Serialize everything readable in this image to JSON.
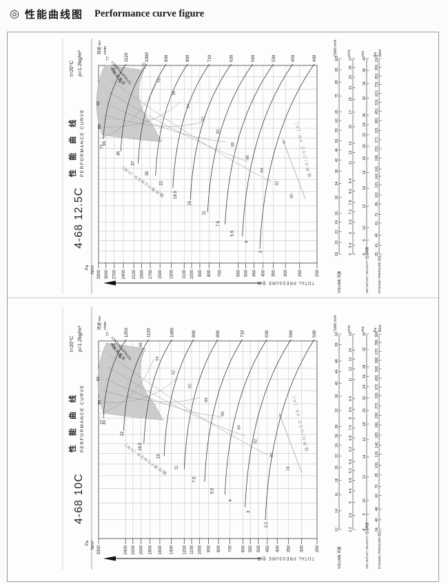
{
  "page": {
    "bullet": "◎",
    "title_zh": "性能曲线图",
    "title_en": "Performance curve figure"
  },
  "colors": {
    "shaded_efficiency_zone": "#c7c7c7",
    "curve_line": "#3a3a3a",
    "grid_line": "#b5b5b5",
    "noise_gray": "#8a8a8a"
  },
  "chart_data": [
    {
      "type": "line",
      "model": "4-68 12.5C",
      "title_zh": "性 能 曲 线",
      "title_en": "PERFORMANCE CURVE",
      "condition_temp": "t=20°C",
      "condition_density": "ρ=1.2kg/m³",
      "speed_axis": {
        "header": "转速 rev",
        "unit": "r/min",
        "rpm": [
          1120,
          1000,
          900,
          800,
          710,
          630,
          560,
          500,
          450,
          400
        ]
      },
      "pressure_axis": {
        "unit_line1": "Pa",
        "unit_line2": "N/m²",
        "label": "TOTAL PRESSURE 全压",
        "ticks": [
          3300,
          3000,
          2700,
          2400,
          2100,
          1900,
          1700,
          1500,
          1300,
          1100,
          1000,
          900,
          800,
          700,
          550,
          500,
          450,
          400,
          350,
          300,
          250,
          200
        ]
      },
      "efficiency": {
        "label_zh": "全压效率%",
        "label_en": "TOTALEFFICIENCY",
        "arc_labels": [
          77,
          81,
          83
        ],
        "edge_labels": [
          82,
          80,
          77
        ]
      },
      "shaft_power": {
        "label": "轴功率POWER (kW)",
        "values_kw": [
          55,
          45,
          37,
          30,
          22,
          18.5,
          15,
          11,
          7.5,
          5.5,
          4,
          3
        ]
      },
      "noise": {
        "label": "噪声NIOSE dB (A)",
        "values_dba": [
          100,
          98,
          96,
          94,
          92,
          90,
          88,
          86,
          84,
          82,
          80
        ]
      },
      "volume_axis": {
        "label": "VOLUME 风量",
        "unit1": "*1000 m³/h",
        "unit2": "m³/s",
        "ticks_1000m3h": [
          18,
          20,
          22,
          24,
          26,
          30,
          34,
          38,
          42,
          46,
          50,
          55,
          60,
          65,
          75,
          85,
          95,
          105
        ],
        "ticks_m3s": [
          5,
          5.4,
          6,
          6.6,
          7.2,
          7.8,
          8.6,
          9.4,
          11,
          12,
          13,
          15,
          17,
          19,
          21,
          23,
          25,
          27
        ]
      },
      "outlet_velocity_axis": {
        "label": "AIR OUTLET VELOCITY 出口风速",
        "unit": "m/s",
        "ticks": [
          8,
          9,
          10,
          12,
          14,
          16,
          18,
          20,
          22,
          24,
          26,
          30,
          34,
          38,
          42
        ]
      },
      "dynamic_pressure_axis": {
        "label": "DYNAMIC PRESSURE 动压",
        "unit_line1": "Pa",
        "unit_line2": "N/m²",
        "ticks": [
          35,
          41,
          49,
          61,
          71,
          86,
          101,
          121,
          141,
          161,
          196,
          231,
          271,
          321,
          381,
          451,
          531,
          621,
          731,
          851,
          991,
          1161
        ]
      }
    },
    {
      "type": "line",
      "model": "4-68 10C",
      "title_zh": "性 能 曲 线",
      "title_en": "PERFORMANCE CURVE",
      "condition_temp": "t=20°C",
      "condition_density": "ρ=1.2kg/m³",
      "speed_axis": {
        "header": "转速 rev",
        "unit": "r/min",
        "rpm": [
          1250,
          1120,
          1000,
          900,
          800,
          710,
          630,
          560,
          500
        ]
      },
      "pressure_axis": {
        "unit_line1": "Pa",
        "unit_line2": "N/m²",
        "label": "TOTAL PRESSURE 全压",
        "ticks": [
          3300,
          2400,
          2200,
          2000,
          1800,
          1600,
          1400,
          1200,
          1100,
          1000,
          900,
          800,
          700,
          600,
          550,
          500,
          450,
          400,
          350,
          300,
          250
        ]
      },
      "efficiency": {
        "label_zh": "全压效率%",
        "label_en": "TOTALEFFICIENCY",
        "arc_labels": [
          77,
          81,
          83
        ],
        "edge_labels": [
          82,
          80,
          77
        ]
      },
      "shaft_power": {
        "label": "轴功率POWER (kW)",
        "values_kw": [
          30,
          22,
          18.5,
          15,
          11,
          7.5,
          5.5,
          4,
          3,
          2.2
        ]
      },
      "noise": {
        "label": "噪声NIOSE dB (A)",
        "values_dba": [
          96,
          94,
          92,
          90,
          88,
          86,
          84,
          82,
          80,
          78
        ]
      },
      "volume_axis": {
        "label": "VOLUME 风量",
        "unit1": "*1000 m³/h",
        "unit2": "m³/s",
        "ticks_1000m3h": [
          12,
          14,
          16,
          18,
          20,
          22,
          24,
          26,
          28,
          32,
          36,
          40,
          44,
          48,
          55,
          60
        ],
        "ticks_m3s": [
          3.2,
          3.6,
          4,
          4.4,
          4.8,
          5.2,
          5.6,
          6.2,
          6.8,
          7.4,
          8,
          8.6,
          9.4,
          11,
          12,
          13,
          14,
          16
        ]
      },
      "outlet_velocity_axis": {
        "label": "AIR OUTLET VELOCITY 出口风速",
        "unit": "m/s",
        "ticks": [
          8,
          9,
          10,
          12,
          14,
          16,
          18,
          20,
          22,
          24,
          26,
          28,
          32,
          36
        ]
      },
      "dynamic_pressure_axis": {
        "label": "DYNAMIC PRESSURE 动压",
        "unit_line1": "Pa",
        "unit_line2": "N/m²",
        "ticks": [
          34,
          40,
          48,
          60,
          70,
          85,
          100,
          120,
          140,
          165,
          196,
          230,
          270,
          320,
          370,
          430,
          500,
          580,
          670,
          780,
          900
        ]
      }
    }
  ]
}
